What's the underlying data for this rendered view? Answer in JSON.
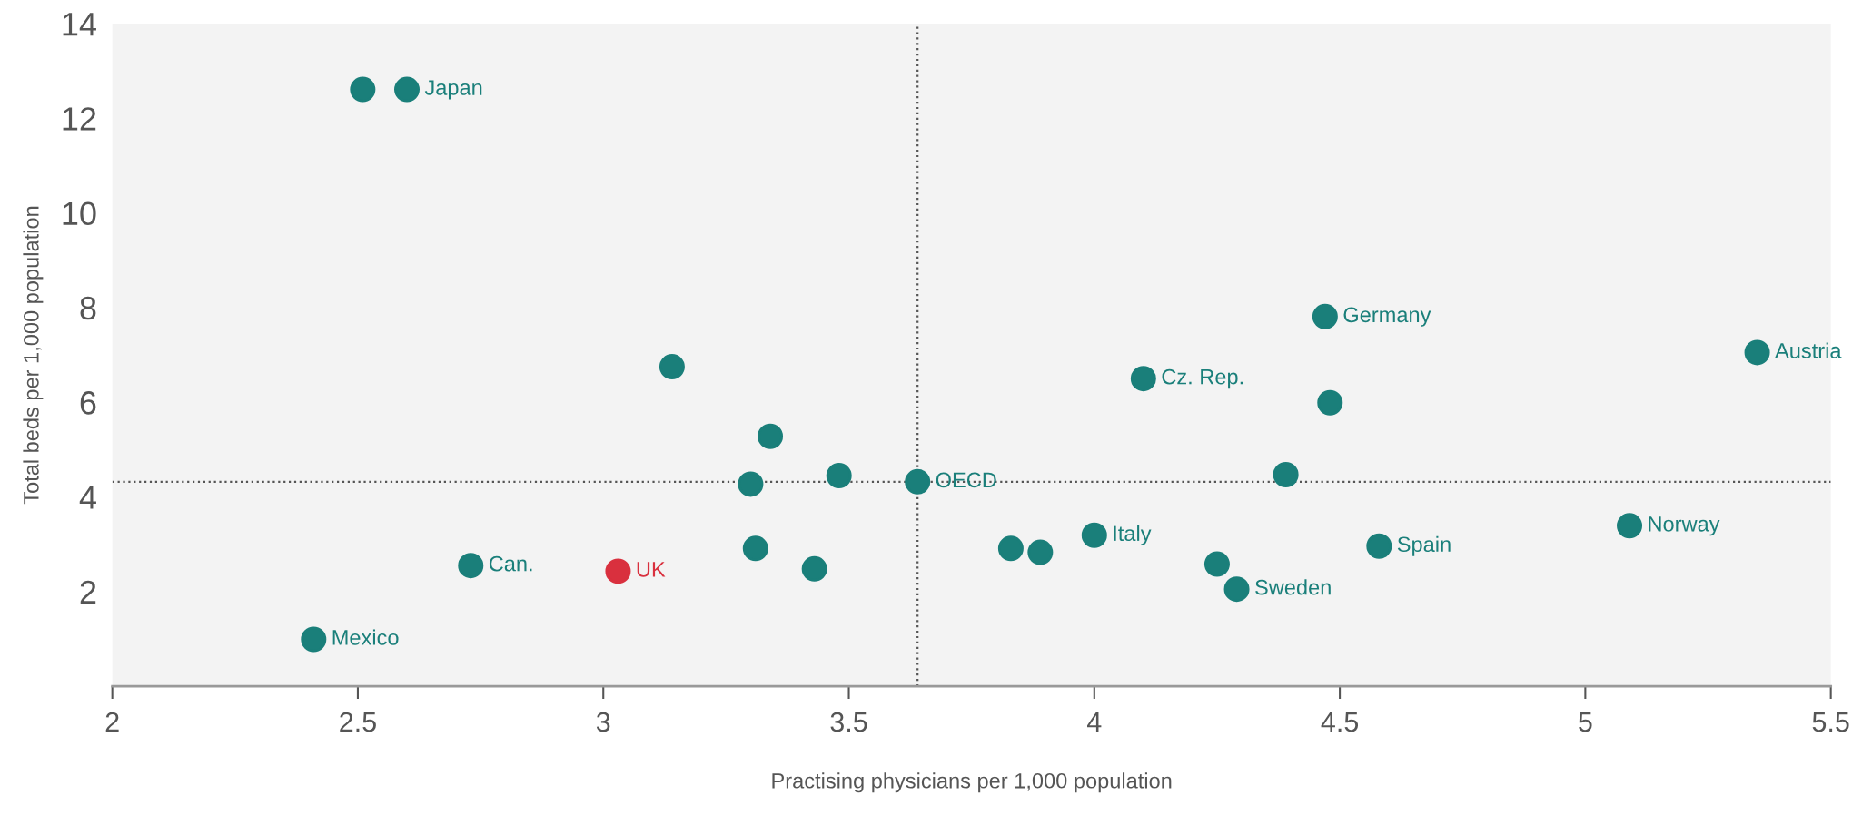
{
  "chart_data": {
    "type": "scatter",
    "xlabel": "Practising physicians per 1,000 population",
    "ylabel": "Total beds per 1,000 population",
    "xlim": [
      2,
      5.5
    ],
    "xticks": [
      2,
      2.5,
      3,
      3.5,
      4,
      4.5,
      5,
      5.5
    ],
    "ylim": [
      0,
      14
    ],
    "yticks": [
      2,
      4,
      6,
      8,
      10,
      12,
      14
    ],
    "grid": false,
    "legend": false,
    "marker": "circle",
    "series": [
      {
        "color": "#1a7f7a",
        "x": [
          2.51,
          2.6,
          3.14,
          3.34,
          3.48,
          3.3,
          3.64,
          3.31,
          3.43,
          2.73,
          2.41,
          3.83,
          3.89,
          4.0,
          4.1,
          4.47,
          4.48,
          4.39,
          4.25,
          4.29,
          4.58,
          5.09,
          5.35
        ],
        "values": [
          12.61,
          12.61,
          6.75,
          5.28,
          4.45,
          4.27,
          4.32,
          2.91,
          2.48,
          2.55,
          0.99,
          2.91,
          2.83,
          3.19,
          6.5,
          7.81,
          5.99,
          4.47,
          2.58,
          2.05,
          2.96,
          3.39,
          7.05
        ]
      },
      {
        "name": "UK",
        "color": "#d9303e",
        "x": [
          3.03
        ],
        "values": [
          2.43
        ]
      }
    ],
    "annotations": [
      {
        "text": "Japan",
        "x": 2.6,
        "y": 12.61
      },
      {
        "text": "OECD",
        "x": 3.64,
        "y": 4.32
      },
      {
        "text": "Can.",
        "x": 2.73,
        "y": 2.55
      },
      {
        "text": "Mexico",
        "x": 2.41,
        "y": 0.99
      },
      {
        "text": "Italy",
        "x": 4.0,
        "y": 3.19
      },
      {
        "text": "Cz. Rep.",
        "x": 4.1,
        "y": 6.5
      },
      {
        "text": "Germany",
        "x": 4.47,
        "y": 7.81
      },
      {
        "text": "Sweden",
        "x": 4.29,
        "y": 2.05
      },
      {
        "text": "Spain",
        "x": 4.58,
        "y": 2.96
      },
      {
        "text": "Norway",
        "x": 5.09,
        "y": 3.39
      },
      {
        "text": "Austria",
        "x": 5.35,
        "y": 7.05
      }
    ],
    "ref_lines": [
      {
        "axis": "x",
        "value": 3.64,
        "line_style": "dotted",
        "color": "#555555"
      },
      {
        "axis": "y",
        "value": 4.32,
        "line_style": "dotted",
        "color": "#555555"
      }
    ]
  }
}
